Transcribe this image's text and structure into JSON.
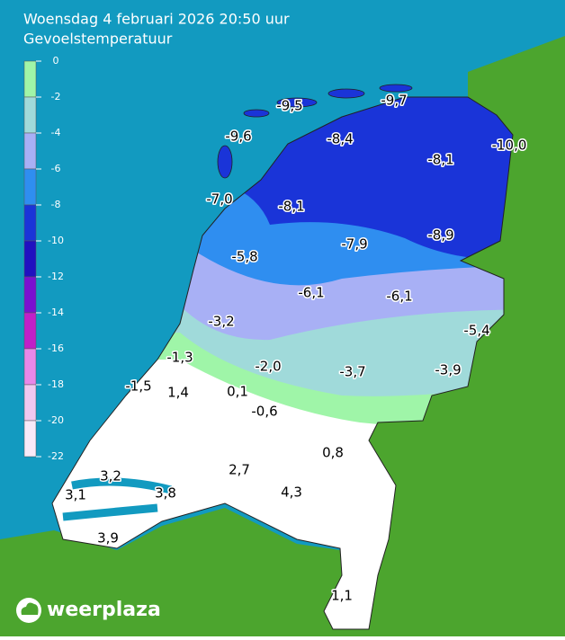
{
  "header": {
    "title": "Woensdag 4 februari 2026 20:50 uur",
    "subtitle": "Gevoelstemperatuur"
  },
  "legend": {
    "labels": [
      "0",
      "-2",
      "-4",
      "-6",
      "-8",
      "-10",
      "-12",
      "-14",
      "-16",
      "-18",
      "-20",
      "-22"
    ],
    "colors": [
      "#9ff5a8",
      "#a0dada",
      "#a8b0f5",
      "#2f8ef0",
      "#1a34d8",
      "#2010c0",
      "#7a10d0",
      "#c020c8",
      "#e888e8",
      "#f0c8f0",
      "#f8eaf8"
    ]
  },
  "stations": [
    "-9,5",
    "-9,7",
    "-9,6",
    "-8,4",
    "-10,0",
    "-8,1",
    "-7,0",
    "-8,1",
    "-7,9",
    "-8,9",
    "-5,8",
    "-6,1",
    "-6,1",
    "-3,2",
    "-5,4",
    "-1,3",
    "-2,0",
    "-3,7",
    "-3,9",
    "-1,5",
    "1,4",
    "0,1",
    "-0,6",
    "0,8",
    "3,2",
    "2,7",
    "3,1",
    "3,8",
    "4,3",
    "3,9",
    "1,1"
  ],
  "brand": "weerplaza"
}
